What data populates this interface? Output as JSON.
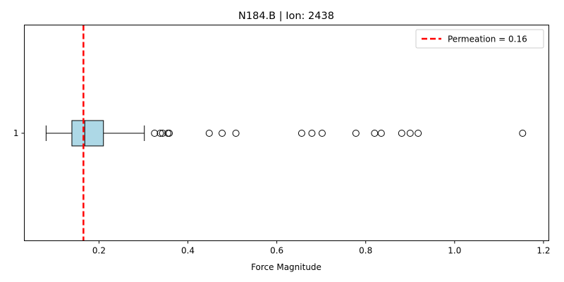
{
  "chart_data": {
    "type": "boxplot",
    "orientation": "horizontal",
    "title": "N184.B | Ion: 2438",
    "xlabel": "Force Magnitude",
    "ylabel": "",
    "xlim": [
      0.032,
      1.212
    ],
    "x_ticks": [
      0.2,
      0.4,
      0.6,
      0.8,
      1.0,
      1.2
    ],
    "x_tick_labels": [
      "0.2",
      "0.4",
      "0.6",
      "0.8",
      "1.0",
      "1.2"
    ],
    "y_tick_labels": [
      "1"
    ],
    "grid": false,
    "box": {
      "category": "1",
      "whisker_low": 0.081,
      "q1": 0.139,
      "median": 0.168,
      "q3": 0.21,
      "whisker_high": 0.302,
      "fill_color": "#add8e6",
      "outliers": [
        0.325,
        0.338,
        0.343,
        0.355,
        0.358,
        0.448,
        0.477,
        0.508,
        0.656,
        0.679,
        0.702,
        0.778,
        0.82,
        0.835,
        0.881,
        0.9,
        0.918,
        1.153
      ]
    },
    "reference_line": {
      "value": 0.165,
      "color": "#ff0000",
      "style": "dashed",
      "label": "Permeation = 0.16"
    },
    "legend": {
      "position": "top-right",
      "entries": [
        "Permeation = 0.16"
      ]
    }
  }
}
